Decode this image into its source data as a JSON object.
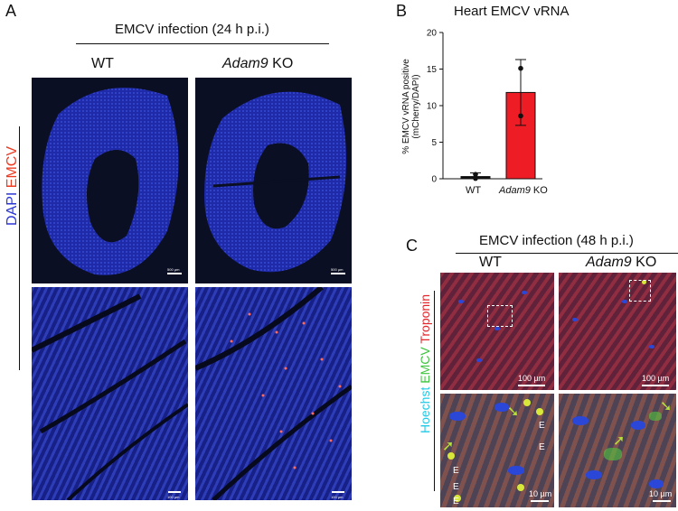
{
  "panelA": {
    "letter": "A",
    "header": "EMCV infection (24 h p.i.)",
    "col_wt": "WT",
    "col_ko_gene": "Adam9",
    "col_ko_suffix": " KO",
    "side_label_dapi": "DAPI",
    "side_label_emcv": "EMCV",
    "scale_top": "500 µm",
    "scale_bottom": "100 µm"
  },
  "panelB": {
    "letter": "B",
    "title": "Heart EMCV vRNA",
    "ylabel_line1": "% EMCV vRNA positive",
    "ylabel_line2": "(mCherry/DAPI)",
    "x_wt": "WT",
    "x_ko_gene": "Adam9",
    "x_ko_suffix": " KO",
    "bar_color_ko": "#ee1c25",
    "bar_color_wt": "#111111"
  },
  "panelC": {
    "letter": "C",
    "header": "EMCV infection (48 h p.i.)",
    "col_wt": "WT",
    "col_ko_gene": "Adam9",
    "col_ko_suffix": " KO",
    "side_hoechst": "Hoechst",
    "side_emcv": "EMCV",
    "side_troponin": "Troponin",
    "scale_top": "100 µm",
    "scale_bottom": "10 µm",
    "e_marker": "E"
  },
  "chart_data": {
    "type": "bar",
    "title": "Heart EMCV vRNA",
    "categories": [
      "WT",
      "Adam9 KO"
    ],
    "values": [
      0.3,
      11.8
    ],
    "errors": [
      0.5,
      4.5
    ],
    "points": [
      [
        0.6,
        0.05
      ],
      [
        15.1,
        8.6
      ]
    ],
    "ylabel": "% EMCV vRNA positive (mCherry/DAPI)",
    "ylim": [
      0,
      20
    ],
    "yticks": [
      "0",
      "5",
      "10",
      "15",
      "20"
    ]
  }
}
